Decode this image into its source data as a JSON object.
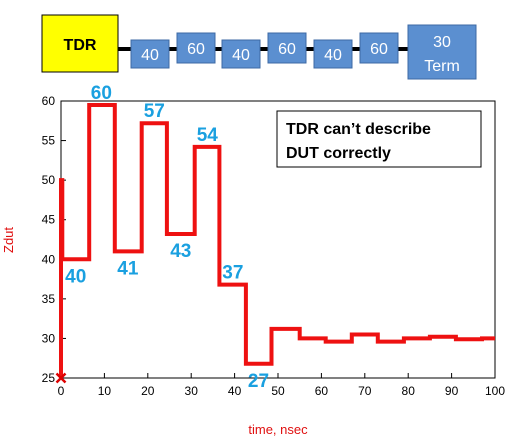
{
  "colors": {
    "trace": "#ee1111",
    "callout": "#1aa0e0",
    "segment_fill": "#5b8fd0",
    "segment_stroke": "#3c6aa4",
    "tdr_fill": "#ffff00",
    "axis_label": "#e01010"
  },
  "topology": {
    "source_label": "TDR",
    "segments": [
      "40",
      "60",
      "40",
      "60",
      "40",
      "60"
    ],
    "termination": [
      "30",
      "Term"
    ]
  },
  "note": {
    "line1": "TDR can’t describe",
    "line2": "DUT correctly"
  },
  "chart_data": {
    "type": "line",
    "xlabel": "time, nsec",
    "ylabel": "Zdut",
    "xlim": [
      0,
      100
    ],
    "ylim": [
      25,
      60
    ],
    "xticks": [
      0,
      10,
      20,
      30,
      40,
      50,
      60,
      70,
      80,
      90,
      100
    ],
    "yticks": [
      25,
      30,
      35,
      40,
      45,
      50,
      55,
      60
    ],
    "grid": false,
    "series": [
      {
        "x": [
          0,
          0,
          0.3,
          0.3,
          6.5,
          6.5,
          12.4,
          12.4,
          18.6,
          18.6,
          24.4,
          24.4,
          30.8,
          30.8,
          36.5,
          36.5,
          42.6,
          42.6,
          48.5,
          48.5,
          55,
          55,
          61,
          61,
          67,
          67,
          73,
          73,
          79,
          79,
          85,
          85,
          91,
          91,
          97,
          97,
          100
        ],
        "y": [
          25,
          50,
          50,
          40,
          40,
          59.5,
          59.5,
          41,
          41,
          57.2,
          57.2,
          43.2,
          43.2,
          54.2,
          54.2,
          36.8,
          36.8,
          26.8,
          26.8,
          31.2,
          31.2,
          30,
          30,
          29.6,
          29.6,
          30.5,
          30.5,
          29.6,
          29.6,
          30,
          30,
          30.2,
          30.2,
          29.9,
          29.9,
          30,
          30
        ]
      }
    ],
    "marker": {
      "x": 0,
      "y": 25,
      "symbol": "x"
    },
    "annotations": [
      {
        "text": "60",
        "x": 9.3,
        "y": 59.5,
        "pos": "above"
      },
      {
        "text": "40",
        "x": 3.4,
        "y": 40,
        "pos": "below"
      },
      {
        "text": "41",
        "x": 15.4,
        "y": 41,
        "pos": "below"
      },
      {
        "text": "57",
        "x": 21.5,
        "y": 57.2,
        "pos": "above"
      },
      {
        "text": "43",
        "x": 27.6,
        "y": 43.2,
        "pos": "below"
      },
      {
        "text": "54",
        "x": 33.7,
        "y": 54.2,
        "pos": "above"
      },
      {
        "text": "37",
        "x": 39.6,
        "y": 36.8,
        "pos": "above"
      },
      {
        "text": "27",
        "x": 45.5,
        "y": 26.8,
        "pos": "below"
      }
    ]
  }
}
